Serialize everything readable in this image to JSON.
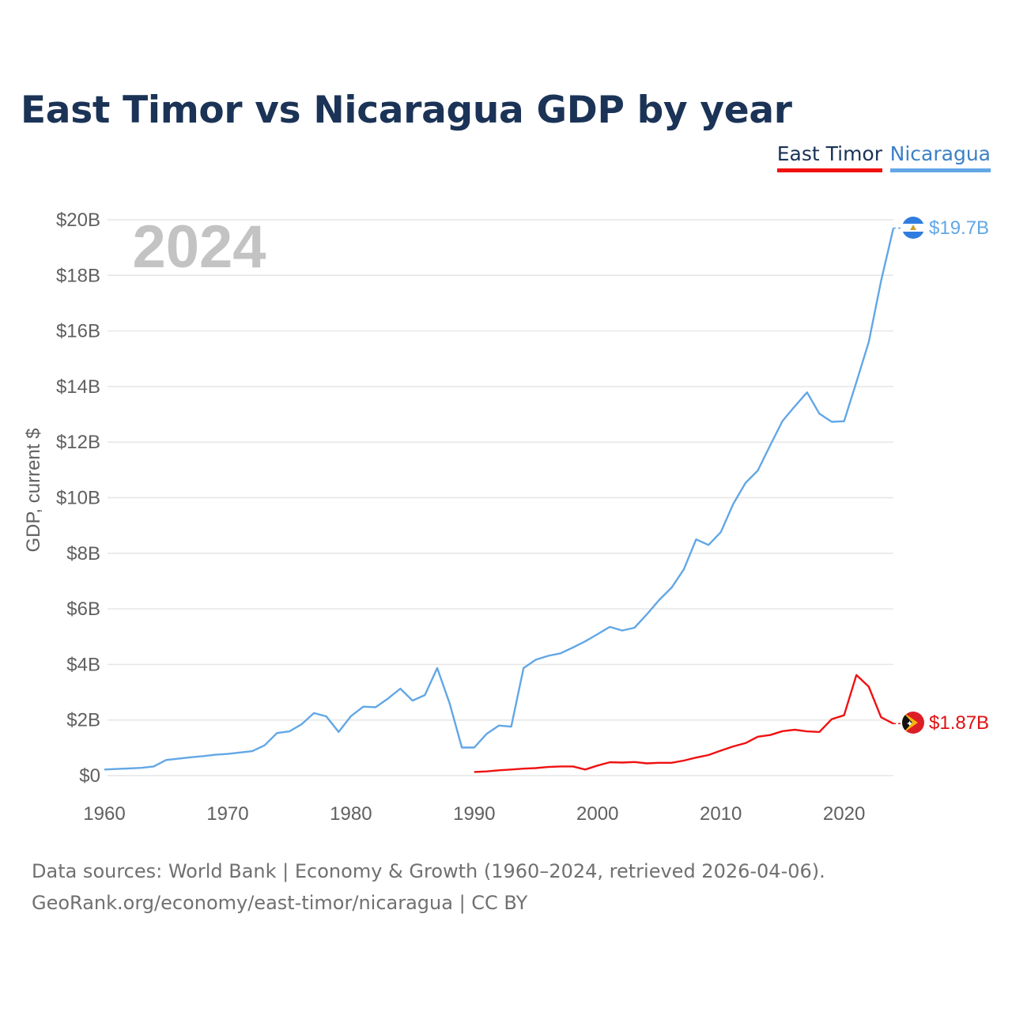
{
  "chart_data": {
    "type": "line",
    "title": "East Timor vs Nicaragua GDP by year",
    "year_label": "2024",
    "xlabel": "",
    "ylabel": "GDP, current $",
    "xlim": [
      1960,
      2024
    ],
    "ylim": [
      0,
      20
    ],
    "y_unit": "billions USD",
    "x_ticks": [
      1960,
      1970,
      1980,
      1990,
      2000,
      2010,
      2020
    ],
    "y_ticks": [
      0,
      2,
      4,
      6,
      8,
      10,
      12,
      14,
      16,
      18,
      20
    ],
    "y_tick_labels": [
      "$0",
      "$2B",
      "$4B",
      "$6B",
      "$8B",
      "$10B",
      "$12B",
      "$14B",
      "$16B",
      "$18B",
      "$20B"
    ],
    "grid": true,
    "legend_position": "top-right",
    "series": [
      {
        "name": "East Timor",
        "color": "#f01010",
        "end_label": "$1.87B",
        "x": [
          1990,
          1991,
          1992,
          1993,
          1994,
          1995,
          1996,
          1997,
          1998,
          1999,
          2000,
          2001,
          2002,
          2003,
          2004,
          2005,
          2006,
          2007,
          2008,
          2009,
          2010,
          2011,
          2012,
          2013,
          2014,
          2015,
          2016,
          2017,
          2018,
          2019,
          2020,
          2021,
          2022,
          2023,
          2024
        ],
        "values": [
          0.13,
          0.15,
          0.19,
          0.22,
          0.25,
          0.27,
          0.31,
          0.33,
          0.33,
          0.22,
          0.36,
          0.48,
          0.47,
          0.49,
          0.44,
          0.46,
          0.46,
          0.54,
          0.65,
          0.74,
          0.9,
          1.05,
          1.17,
          1.4,
          1.46,
          1.6,
          1.65,
          1.59,
          1.57,
          2.03,
          2.17,
          3.62,
          3.2,
          2.1,
          1.87
        ]
      },
      {
        "name": "Nicaragua",
        "color": "#62a7e6",
        "end_label": "$19.7B",
        "x": [
          1960,
          1961,
          1962,
          1963,
          1964,
          1965,
          1966,
          1967,
          1968,
          1969,
          1970,
          1971,
          1972,
          1973,
          1974,
          1975,
          1976,
          1977,
          1978,
          1979,
          1980,
          1981,
          1982,
          1983,
          1984,
          1985,
          1986,
          1987,
          1988,
          1989,
          1990,
          1991,
          1992,
          1993,
          1994,
          1995,
          1996,
          1997,
          1998,
          1999,
          2000,
          2001,
          2002,
          2003,
          2004,
          2005,
          2006,
          2007,
          2008,
          2009,
          2010,
          2011,
          2012,
          2013,
          2014,
          2015,
          2016,
          2017,
          2018,
          2019,
          2020,
          2021,
          2022,
          2023,
          2024
        ],
        "values": [
          0.22,
          0.24,
          0.26,
          0.28,
          0.33,
          0.56,
          0.61,
          0.66,
          0.7,
          0.75,
          0.78,
          0.83,
          0.88,
          1.09,
          1.53,
          1.59,
          1.85,
          2.25,
          2.13,
          1.57,
          2.14,
          2.48,
          2.46,
          2.77,
          3.13,
          2.7,
          2.9,
          3.87,
          2.61,
          1.01,
          1.01,
          1.5,
          1.8,
          1.76,
          3.87,
          4.17,
          4.31,
          4.4,
          4.61,
          4.83,
          5.09,
          5.35,
          5.22,
          5.32,
          5.8,
          6.32,
          6.76,
          7.42,
          8.5,
          8.3,
          8.76,
          9.77,
          10.53,
          10.98,
          11.88,
          12.76,
          13.29,
          13.79,
          13.02,
          12.73,
          12.75,
          14.16,
          15.6,
          17.8,
          19.7
        ]
      }
    ]
  },
  "footer": {
    "line1": "Data sources: World Bank | Economy & Growth (1960–2024, retrieved 2026-04-06).",
    "line2": "GeoRank.org/economy/east-timor/nicaragua | CC BY"
  }
}
